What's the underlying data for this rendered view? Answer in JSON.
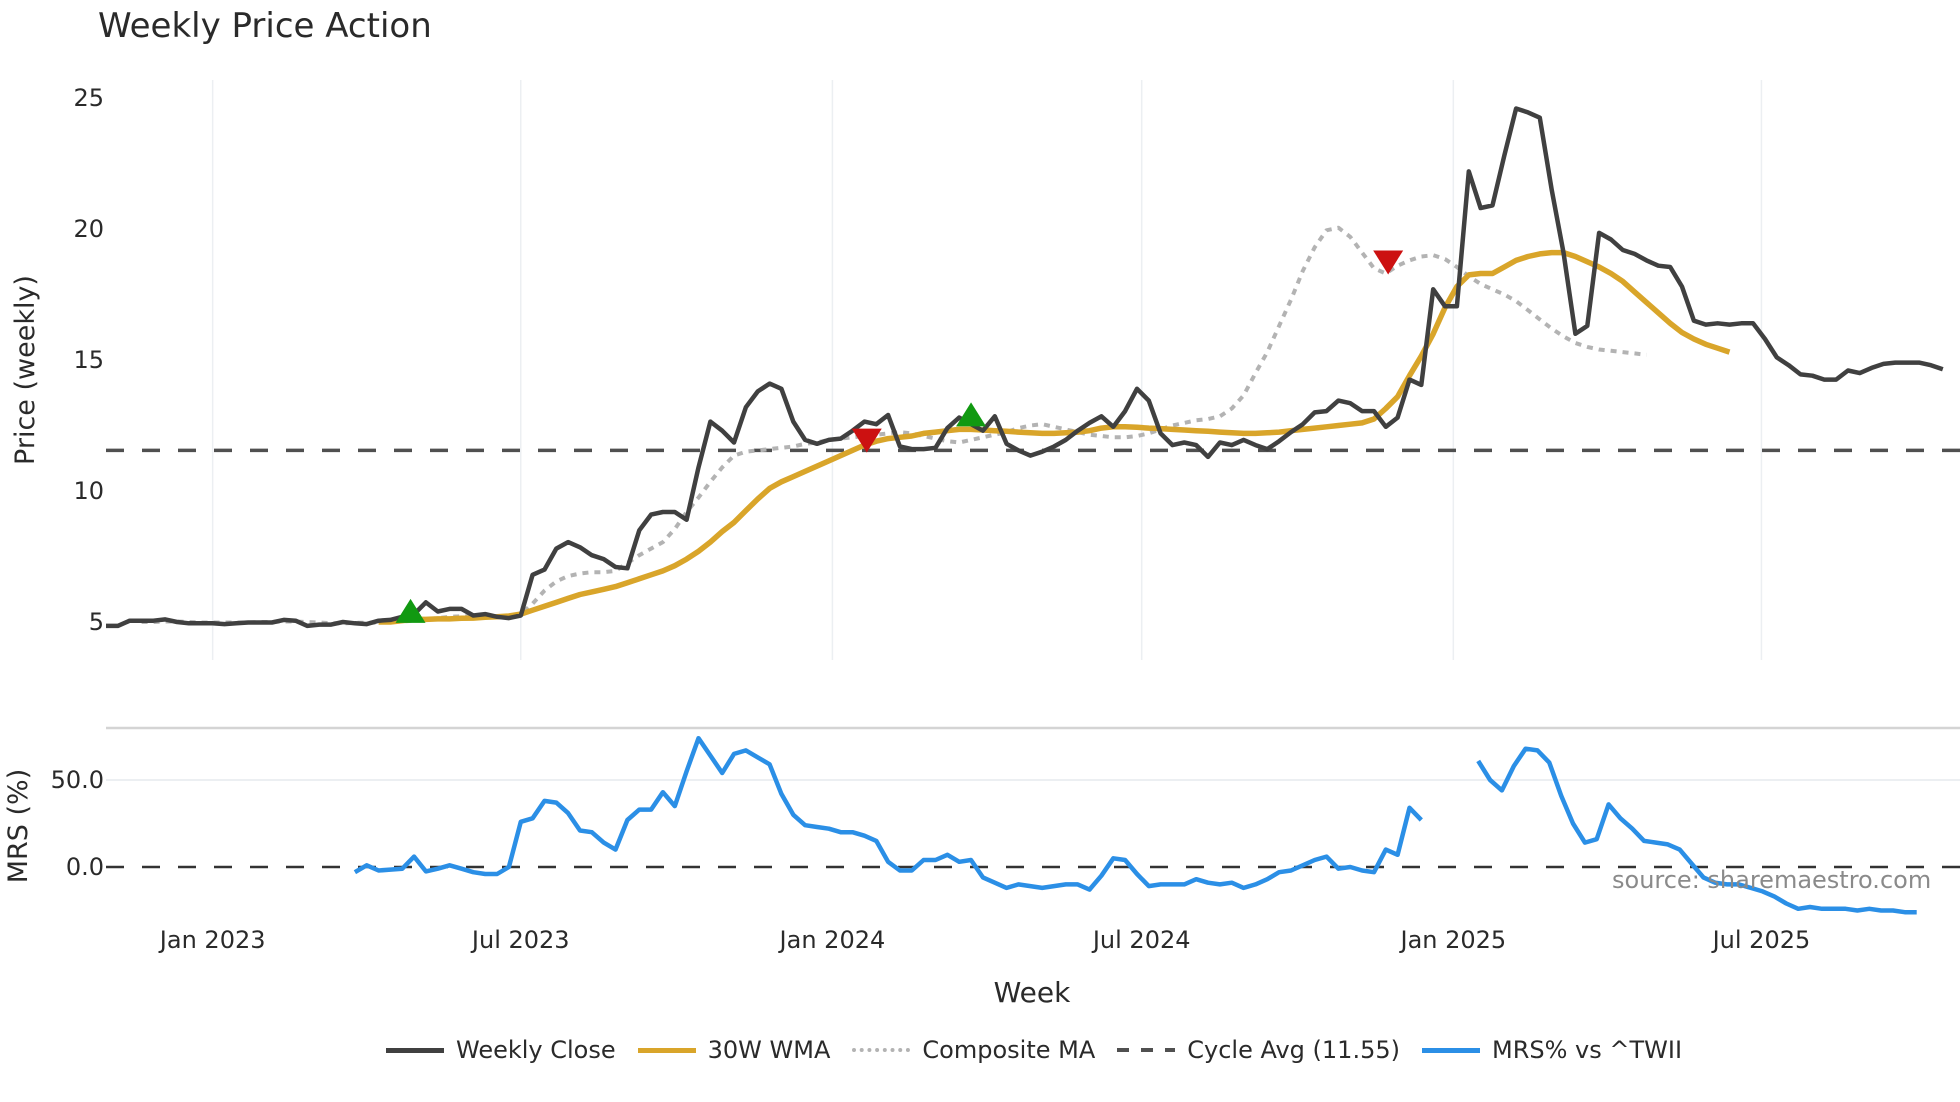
{
  "title": "Weekly Price Action",
  "source_note": "source: sharemaestro.com",
  "colors": {
    "close": "#404040",
    "wma": "#d9a52a",
    "composite": "#b3b3b3",
    "cycle": "#505050",
    "mrs": "#2b8fe6",
    "buy": "#119911",
    "sell": "#cc1111",
    "grid": "#eceff2"
  },
  "legend": [
    {
      "key": "close",
      "label": "Weekly Close",
      "style": "solid"
    },
    {
      "key": "wma",
      "label": "30W WMA",
      "style": "solid"
    },
    {
      "key": "composite",
      "label": "Composite MA",
      "style": "dotted"
    },
    {
      "key": "cycle",
      "label": "Cycle Avg (11.55)",
      "style": "dashed"
    },
    {
      "key": "mrs",
      "label": "MRS% vs ^TWII",
      "style": "solid"
    }
  ],
  "chart_data": {
    "type": "line",
    "title": "Weekly Price Action",
    "xlabel": "Week",
    "x_ticks": [
      {
        "label": "Jan 2023",
        "week": 9
      },
      {
        "label": "Jul 2023",
        "week": 35
      },
      {
        "label": "Jan 2024",
        "week": 61.3
      },
      {
        "label": "Jul 2024",
        "week": 87.4
      },
      {
        "label": "Jan 2025",
        "week": 113.7
      },
      {
        "label": "Jul 2025",
        "week": 139.7
      }
    ],
    "panels": [
      {
        "name": "price",
        "ylabel": "Price (weekly)",
        "ylim": [
          3.9,
          26.0
        ],
        "y_ticks": [
          5,
          10,
          15,
          20,
          25
        ],
        "cycle_avg": 11.55,
        "series": [
          {
            "name": "Weekly Close",
            "key": "close",
            "start_week": 0,
            "values": [
              4.85,
              4.85,
              5.05,
              5.05,
              5.05,
              5.1,
              5.0,
              4.95,
              4.95,
              4.95,
              4.92,
              4.95,
              4.98,
              4.98,
              4.98,
              5.08,
              5.05,
              4.85,
              4.9,
              4.9,
              5.0,
              4.95,
              4.92,
              5.05,
              5.08,
              5.2,
              5.3,
              5.75,
              5.4,
              5.5,
              5.5,
              5.25,
              5.3,
              5.2,
              5.15,
              5.25,
              6.8,
              7.0,
              7.8,
              8.05,
              7.85,
              7.55,
              7.4,
              7.1,
              7.05,
              8.5,
              9.1,
              9.2,
              9.2,
              8.9,
              10.9,
              12.65,
              12.3,
              11.85,
              13.2,
              13.8,
              14.1,
              13.9,
              12.65,
              11.95,
              11.8,
              11.95,
              12.0,
              12.3,
              12.65,
              12.55,
              12.9,
              11.7,
              11.6,
              11.6,
              11.65,
              12.4,
              12.8,
              12.55,
              12.3,
              12.85,
              11.8,
              11.55,
              11.35,
              11.5,
              11.7,
              11.95,
              12.3,
              12.6,
              12.85,
              12.45,
              13.05,
              13.9,
              13.45,
              12.2,
              11.75,
              11.85,
              11.75,
              11.3,
              11.85,
              11.75,
              11.95,
              11.75,
              11.6,
              11.9,
              12.25,
              12.55,
              13.0,
              13.05,
              13.45,
              13.35,
              13.05,
              13.05,
              12.45,
              12.8,
              14.25,
              14.05,
              17.7,
              17.05,
              17.05,
              22.2,
              20.8,
              20.9,
              22.8,
              24.6,
              24.45,
              24.25,
              21.5,
              19.1,
              16.0,
              16.3,
              19.85,
              19.6,
              19.2,
              19.05,
              18.8,
              18.6,
              18.55,
              17.8,
              16.5,
              16.35,
              16.4,
              16.35,
              16.4,
              16.4,
              15.8,
              15.1,
              14.8,
              14.45,
              14.4,
              14.25,
              14.25,
              14.6,
              14.5,
              14.7,
              14.85,
              14.9,
              14.9,
              14.9,
              14.8,
              14.65
            ]
          },
          {
            "name": "30W WMA",
            "key": "wma",
            "start_week": 23,
            "values": [
              5.0,
              5.0,
              5.05,
              5.1,
              5.1,
              5.12,
              5.12,
              5.14,
              5.15,
              5.18,
              5.2,
              5.23,
              5.3,
              5.45,
              5.6,
              5.75,
              5.9,
              6.05,
              6.15,
              6.25,
              6.35,
              6.5,
              6.65,
              6.8,
              6.95,
              7.15,
              7.4,
              7.7,
              8.05,
              8.45,
              8.8,
              9.25,
              9.7,
              10.1,
              10.35,
              10.55,
              10.75,
              10.95,
              11.15,
              11.35,
              11.55,
              11.75,
              11.9,
              12.0,
              12.05,
              12.1,
              12.2,
              12.25,
              12.3,
              12.35,
              12.35,
              12.33,
              12.3,
              12.28,
              12.25,
              12.22,
              12.2,
              12.2,
              12.22,
              12.25,
              12.3,
              12.4,
              12.45,
              12.45,
              12.43,
              12.4,
              12.38,
              12.35,
              12.33,
              12.3,
              12.28,
              12.25,
              12.22,
              12.2,
              12.2,
              12.22,
              12.25,
              12.3,
              12.35,
              12.4,
              12.45,
              12.5,
              12.55,
              12.6,
              12.75,
              13.15,
              13.6,
              14.4,
              15.15,
              16.0,
              17.0,
              17.8,
              18.25,
              18.3,
              18.3,
              18.55,
              18.8,
              18.95,
              19.05,
              19.1,
              19.1,
              18.95,
              18.75,
              18.55,
              18.3,
              18.0,
              17.6,
              17.2,
              16.8,
              16.4,
              16.05,
              15.8,
              15.6,
              15.45,
              15.3
            ]
          },
          {
            "name": "Composite MA",
            "key": "composite",
            "start_week": 3,
            "values": [
              5.0,
              5.0,
              5.02,
              5.02,
              5.0,
              4.98,
              4.98,
              4.98,
              4.98,
              4.98,
              5.0,
              5.0,
              5.02,
              5.02,
              5.0,
              4.98,
              4.95,
              4.95,
              4.97,
              4.97,
              4.98,
              5.0,
              5.02,
              5.05,
              5.1,
              5.15,
              5.2,
              5.22,
              5.22,
              5.2,
              5.18,
              5.18,
              5.3,
              5.7,
              6.2,
              6.55,
              6.75,
              6.85,
              6.9,
              6.9,
              6.95,
              7.25,
              7.55,
              7.8,
              8.05,
              8.55,
              9.2,
              9.75,
              10.35,
              10.9,
              11.35,
              11.5,
              11.55,
              11.6,
              11.65,
              11.7,
              11.8,
              11.85,
              11.95,
              12.0,
              12.05,
              12.1,
              12.15,
              12.2,
              12.25,
              12.2,
              12.1,
              12.0,
              11.9,
              11.85,
              11.95,
              12.05,
              12.15,
              12.25,
              12.4,
              12.5,
              12.55,
              12.45,
              12.35,
              12.25,
              12.15,
              12.1,
              12.05,
              12.05,
              12.1,
              12.2,
              12.35,
              12.5,
              12.6,
              12.7,
              12.75,
              12.85,
              13.15,
              13.65,
              14.5,
              15.3,
              16.3,
              17.3,
              18.4,
              19.3,
              19.95,
              20.05,
              19.7,
              19.1,
              18.5,
              18.3,
              18.6,
              18.8,
              18.95,
              19.0,
              18.85,
              18.55,
              18.2,
              17.9,
              17.7,
              17.5,
              17.25,
              16.9,
              16.55,
              16.2,
              15.9,
              15.65,
              15.5,
              15.4,
              15.35,
              15.3,
              15.25,
              15.2
            ]
          }
        ],
        "markers": [
          {
            "type": "buy",
            "week": 25.7,
            "value": 5.35
          },
          {
            "type": "sell",
            "week": 64.2,
            "value": 12.0
          },
          {
            "type": "buy",
            "week": 73,
            "value": 12.85
          },
          {
            "type": "sell",
            "week": 108.2,
            "value": 18.8
          }
        ]
      },
      {
        "name": "mrs",
        "ylabel": "MRS (%)",
        "ylim": [
          -50,
          80
        ],
        "y_ticks": [
          0.0,
          50.0
        ],
        "y_tick_labels": [
          "0.0",
          "50.0"
        ],
        "series": [
          {
            "name": "MRS% vs ^TWII",
            "key": "mrs",
            "segments": [
              {
                "start_week": 21,
                "values": [
                  -3,
                  1,
                  -2,
                  -1.5,
                  -1,
                  6,
                  -2.5,
                  -1,
                  1,
                  -1,
                  -3,
                  -4,
                  -4,
                  0,
                  26,
                  28,
                  38,
                  37,
                  31,
                  21,
                  20,
                  14,
                  10,
                  27,
                  33,
                  33,
                  43,
                  35,
                  55,
                  74,
                  64,
                  54,
                  65,
                  67,
                  63,
                  59,
                  42,
                  30,
                  24,
                  23,
                  22,
                  20,
                  20,
                  18,
                  15,
                  3,
                  -2,
                  -2,
                  4,
                  4,
                  7,
                  3,
                  4,
                  -6,
                  -9,
                  -12,
                  -10,
                  -11,
                  -12,
                  -11,
                  -10,
                  -10,
                  -13,
                  -5,
                  5,
                  4,
                  -4,
                  -11,
                  -10,
                  -10,
                  -10,
                  -7,
                  -9,
                  -10,
                  -9,
                  -12,
                  -10,
                  -7,
                  -3,
                  -2,
                  1,
                  4,
                  6,
                  -1,
                  0,
                  -2,
                  -3,
                  10,
                  7,
                  34,
                  27
                ]
              },
              {
                "start_week": 115.8,
                "values": [
                  61,
                  50,
                  44,
                  58,
                  68,
                  67,
                  60,
                  41,
                  25,
                  14,
                  16,
                  36,
                  28,
                  22,
                  15,
                  14,
                  13,
                  10,
                  2,
                  -6,
                  -9,
                  -10,
                  -10,
                  -12,
                  -14,
                  -17,
                  -21,
                  -24,
                  -23,
                  -24,
                  -24,
                  -24,
                  -25,
                  -24,
                  -25,
                  -25,
                  -26,
                  -26
                ]
              }
            ]
          }
        ]
      }
    ]
  }
}
